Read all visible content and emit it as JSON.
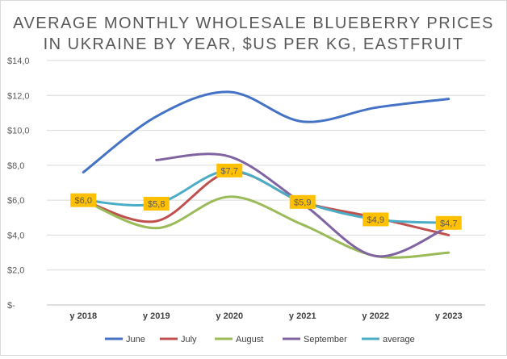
{
  "chart_data": {
    "type": "line",
    "title_lines": [
      "AVERAGE MONTHLY WHOLESALE BLUEBERRY PRICES",
      "IN UKRAINE BY YEAR, $US PER KG, EASTFRUIT"
    ],
    "categories": [
      "y 2018",
      "y 2019",
      "y 2020",
      "y 2021",
      "y 2022",
      "y 2023"
    ],
    "ylim": [
      0,
      14
    ],
    "yticks": [
      {
        "value": 0,
        "label": "$-"
      },
      {
        "value": 2,
        "label": "$2,0"
      },
      {
        "value": 4,
        "label": "$4,0"
      },
      {
        "value": 6,
        "label": "$6,0"
      },
      {
        "value": 8,
        "label": "$8,0"
      },
      {
        "value": 10,
        "label": "$10,0"
      },
      {
        "value": 12,
        "label": "$12,0"
      },
      {
        "value": 14,
        "label": "$14,0"
      }
    ],
    "grid": true,
    "legend": "bottom",
    "series": [
      {
        "name": "June",
        "color": "#4472c4",
        "values": [
          7.6,
          10.8,
          12.2,
          10.5,
          11.3,
          11.8
        ]
      },
      {
        "name": "July",
        "color": "#c0504d",
        "values": [
          6.0,
          4.8,
          7.6,
          5.9,
          5.0,
          4.0
        ]
      },
      {
        "name": "August",
        "color": "#9bbb59",
        "values": [
          6.0,
          4.4,
          6.2,
          4.6,
          2.8,
          3.0
        ]
      },
      {
        "name": "September",
        "color": "#8064a2",
        "values": [
          null,
          8.3,
          8.5,
          5.8,
          2.8,
          4.5
        ]
      },
      {
        "name": "average",
        "color": "#4bacc6",
        "values": [
          6.0,
          5.8,
          7.7,
          5.9,
          4.9,
          4.7
        ]
      }
    ],
    "data_labels": {
      "series": "average",
      "labels": [
        "$6,0",
        "$5,8",
        "$7,7",
        "$5,9",
        "$4,9",
        "$4,7"
      ],
      "background": "#ffc000"
    }
  }
}
